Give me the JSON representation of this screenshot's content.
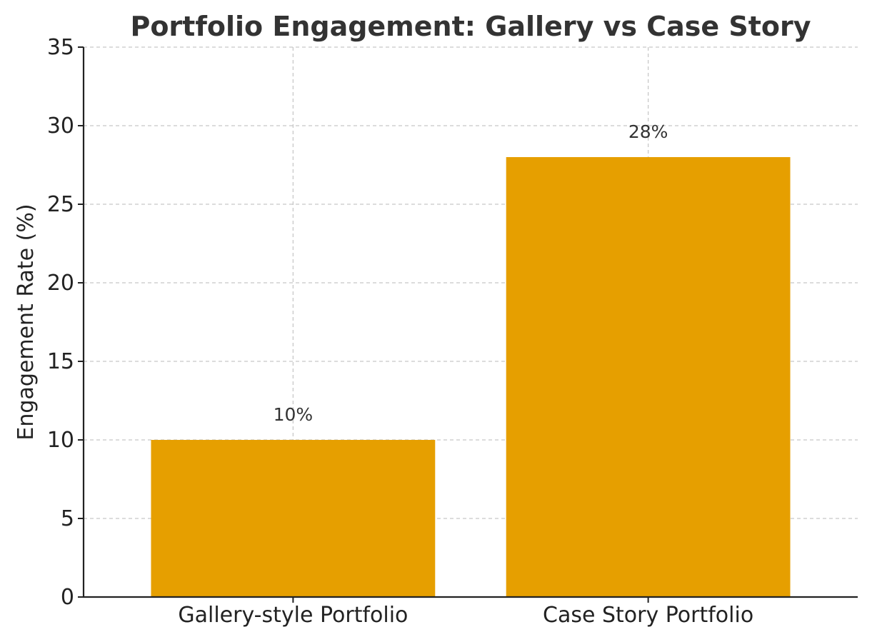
{
  "chart_data": {
    "type": "bar",
    "title": "Portfolio Engagement: Gallery vs Case Story",
    "xlabel": "",
    "ylabel": "Engagement Rate (%)",
    "categories": [
      "Gallery-style Portfolio",
      "Case Story Portfolio"
    ],
    "values": [
      10,
      28
    ],
    "data_labels": [
      "10%",
      "28%"
    ],
    "ylim": [
      0,
      35
    ],
    "yticks": [
      0,
      5,
      10,
      15,
      20,
      25,
      30,
      35
    ],
    "bar_color": "#E69F00",
    "grid": true
  }
}
